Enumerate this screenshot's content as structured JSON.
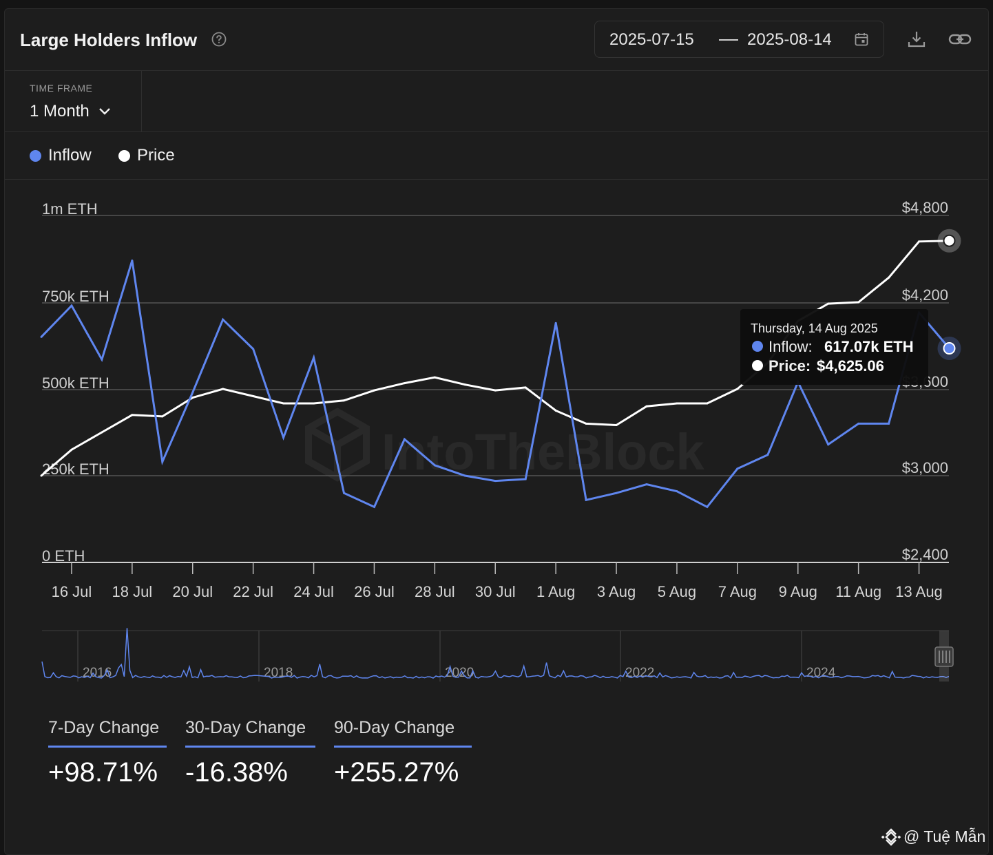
{
  "header": {
    "title": "Large Holders Inflow",
    "date_start": "2025-07-15",
    "date_end": "2025-08-14",
    "help_icon": "question-circle-icon",
    "calendar_icon": "calendar-icon",
    "download_icon": "download-icon",
    "link_icon": "link-icon"
  },
  "timeframe": {
    "label": "TIME FRAME",
    "value": "1 Month"
  },
  "legend": [
    {
      "label": "Inflow",
      "color": "#5f86ef"
    },
    {
      "label": "Price",
      "color": "#ffffff"
    }
  ],
  "watermark": "IntoTheBlock",
  "tooltip": {
    "date": "Thursday, 14 Aug 2025",
    "inflow_label": "Inflow:",
    "inflow_value": "617.07k ETH",
    "price_label": "Price:",
    "price_value": "$4,625.06"
  },
  "chart_data": {
    "type": "line",
    "x": [
      "2025-07-15",
      "2025-07-16",
      "2025-07-17",
      "2025-07-18",
      "2025-07-19",
      "2025-07-20",
      "2025-07-21",
      "2025-07-22",
      "2025-07-23",
      "2025-07-24",
      "2025-07-25",
      "2025-07-26",
      "2025-07-27",
      "2025-07-28",
      "2025-07-29",
      "2025-07-30",
      "2025-07-31",
      "2025-08-01",
      "2025-08-02",
      "2025-08-03",
      "2025-08-04",
      "2025-08-05",
      "2025-08-06",
      "2025-08-07",
      "2025-08-08",
      "2025-08-09",
      "2025-08-10",
      "2025-08-11",
      "2025-08-12",
      "2025-08-13",
      "2025-08-14"
    ],
    "x_tick_labels": [
      "16 Jul",
      "18 Jul",
      "20 Jul",
      "22 Jul",
      "24 Jul",
      "26 Jul",
      "28 Jul",
      "30 Jul",
      "1 Aug",
      "3 Aug",
      "5 Aug",
      "7 Aug",
      "9 Aug",
      "11 Aug",
      "13 Aug"
    ],
    "series": [
      {
        "name": "Inflow",
        "axis": "left",
        "color": "#5f86ef",
        "values": [
          650000,
          740000,
          585000,
          870000,
          290000,
          490000,
          700000,
          615000,
          360000,
          590000,
          200000,
          160000,
          355000,
          280000,
          250000,
          235000,
          240000,
          690000,
          180000,
          200000,
          225000,
          205000,
          160000,
          270000,
          310000,
          520000,
          340000,
          400000,
          400000,
          720000,
          617070
        ]
      },
      {
        "name": "Price",
        "axis": "right",
        "color": "#ffffff",
        "values": [
          3000,
          3180,
          3300,
          3420,
          3410,
          3540,
          3600,
          3550,
          3500,
          3500,
          3520,
          3590,
          3640,
          3680,
          3630,
          3590,
          3610,
          3450,
          3360,
          3350,
          3480,
          3500,
          3500,
          3600,
          3780,
          4070,
          4190,
          4200,
          4370,
          4620,
          4625.06
        ]
      }
    ],
    "y_left": {
      "ticks": [
        "0 ETH",
        "250k ETH",
        "500k ETH",
        "750k ETH",
        "1m ETH"
      ],
      "range": [
        0,
        1000000
      ]
    },
    "y_right": {
      "ticks": [
        "$2,400",
        "$3,000",
        "$3,600",
        "$4,200",
        "$4,800"
      ],
      "range": [
        2400,
        4800
      ]
    },
    "navigator": {
      "year_labels": [
        "2016",
        "2018",
        "2020",
        "2022",
        "2024"
      ]
    }
  },
  "changes": [
    {
      "label": "7-Day Change",
      "value": "+98.71%"
    },
    {
      "label": "30-Day Change",
      "value": "-16.38%"
    },
    {
      "label": "90-Day Change",
      "value": "+255.27%"
    }
  ],
  "credit": {
    "text": "@ Tuệ Mẫn",
    "icon": "binance-logo-icon"
  }
}
